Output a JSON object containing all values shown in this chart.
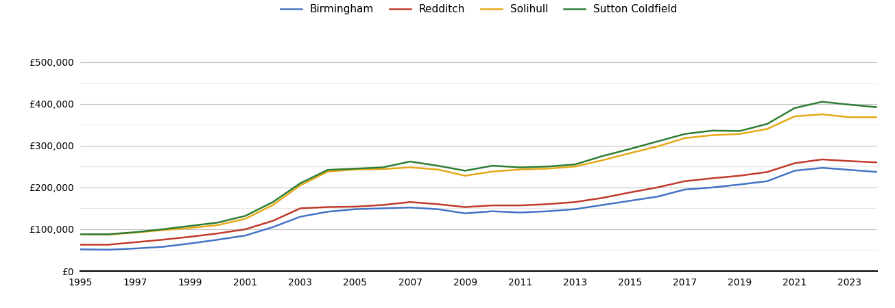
{
  "years": [
    1995,
    1996,
    1997,
    1998,
    1999,
    2000,
    2001,
    2002,
    2003,
    2004,
    2005,
    2006,
    2007,
    2008,
    2009,
    2010,
    2011,
    2012,
    2013,
    2014,
    2015,
    2016,
    2017,
    2018,
    2019,
    2020,
    2021,
    2022,
    2023,
    2024
  ],
  "Birmingham": [
    52000,
    51000,
    54000,
    58000,
    66000,
    75000,
    85000,
    105000,
    130000,
    142000,
    148000,
    150000,
    152000,
    148000,
    138000,
    143000,
    140000,
    143000,
    148000,
    158000,
    168000,
    178000,
    195000,
    200000,
    207000,
    215000,
    240000,
    247000,
    242000,
    237000
  ],
  "Redditch": [
    63000,
    63000,
    69000,
    75000,
    82000,
    90000,
    100000,
    120000,
    150000,
    153000,
    154000,
    158000,
    165000,
    160000,
    153000,
    157000,
    157000,
    160000,
    165000,
    175000,
    188000,
    200000,
    215000,
    222000,
    228000,
    237000,
    258000,
    267000,
    263000,
    260000
  ],
  "Solihull": [
    88000,
    87000,
    92000,
    98000,
    103000,
    110000,
    125000,
    158000,
    205000,
    238000,
    243000,
    244000,
    248000,
    243000,
    228000,
    238000,
    243000,
    245000,
    250000,
    265000,
    282000,
    298000,
    318000,
    325000,
    328000,
    340000,
    370000,
    375000,
    368000,
    368000
  ],
  "Sutton Coldfield": [
    88000,
    88000,
    93000,
    100000,
    108000,
    116000,
    132000,
    165000,
    210000,
    242000,
    245000,
    248000,
    262000,
    252000,
    240000,
    252000,
    248000,
    250000,
    255000,
    275000,
    292000,
    310000,
    328000,
    336000,
    335000,
    352000,
    390000,
    405000,
    398000,
    392000
  ],
  "series_order": [
    "Birmingham",
    "Redditch",
    "Solihull",
    "Sutton Coldfield"
  ],
  "colors": {
    "Birmingham": "#4472c4",
    "Redditch": "#c0392b",
    "Solihull": "#e6a817",
    "Sutton Coldfield": "#2e7d32"
  },
  "ylim": [
    0,
    560000
  ],
  "major_yticks": [
    0,
    100000,
    200000,
    300000,
    400000,
    500000
  ],
  "minor_yticks": [
    50000,
    150000,
    250000,
    350000,
    450000
  ],
  "background_color": "#ffffff",
  "major_grid_color": "#c0c0c0",
  "minor_grid_color": "#e0e0e0",
  "linewidth": 1.8,
  "legend_fontsize": 11,
  "tick_fontsize": 10,
  "xlim_start": 1995,
  "xlim_end": 2024
}
